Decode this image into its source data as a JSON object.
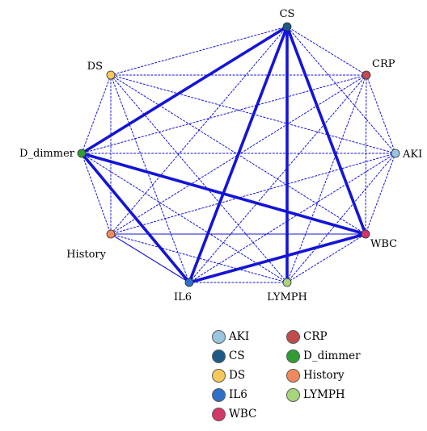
{
  "nodes": [
    {
      "id": "AKI",
      "label": "AKI",
      "color": "#9ac5e0"
    },
    {
      "id": "CRP",
      "label": "CRP",
      "color": "#c24b4b"
    },
    {
      "id": "CS",
      "label": "CS",
      "color": "#1d5a86"
    },
    {
      "id": "D_dimmer",
      "label": "D_dimmer",
      "color": "#2f9d33"
    },
    {
      "id": "DS",
      "label": "DS",
      "color": "#f6c85a"
    },
    {
      "id": "History",
      "label": "History",
      "color": "#f08a5e"
    },
    {
      "id": "IL6",
      "label": "IL6",
      "color": "#2f6fc9"
    },
    {
      "id": "LYMPH",
      "label": "LYMPH",
      "color": "#a8d57c"
    },
    {
      "id": "WBC",
      "label": "WBC",
      "color": "#d43665"
    }
  ],
  "strong_edges": [
    [
      "CS",
      "D_dimmer"
    ],
    [
      "CS",
      "IL6"
    ],
    [
      "CS",
      "LYMPH"
    ],
    [
      "CS",
      "WBC"
    ],
    [
      "D_dimmer",
      "WBC"
    ],
    [
      "D_dimmer",
      "IL6"
    ],
    [
      "IL6",
      "WBC"
    ]
  ],
  "medium_edges": [
    [
      "History",
      "IL6"
    ],
    [
      "History",
      "WBC"
    ]
  ],
  "weak_edges": "all_other_pairs",
  "edge_color": "#1414d8",
  "legend": [
    {
      "label": "AKI",
      "color": "#9ac5e0"
    },
    {
      "label": "CRP",
      "color": "#c24b4b"
    },
    {
      "label": "CS",
      "color": "#1d5a86"
    },
    {
      "label": "D_dimmer",
      "color": "#2f9d33"
    },
    {
      "label": "DS",
      "color": "#f6c85a"
    },
    {
      "label": "History",
      "color": "#f08a5e"
    },
    {
      "label": "IL6",
      "color": "#2f6fc9"
    },
    {
      "label": "LYMPH",
      "color": "#a8d57c"
    },
    {
      "label": "WBC",
      "color": "#d43665"
    }
  ]
}
